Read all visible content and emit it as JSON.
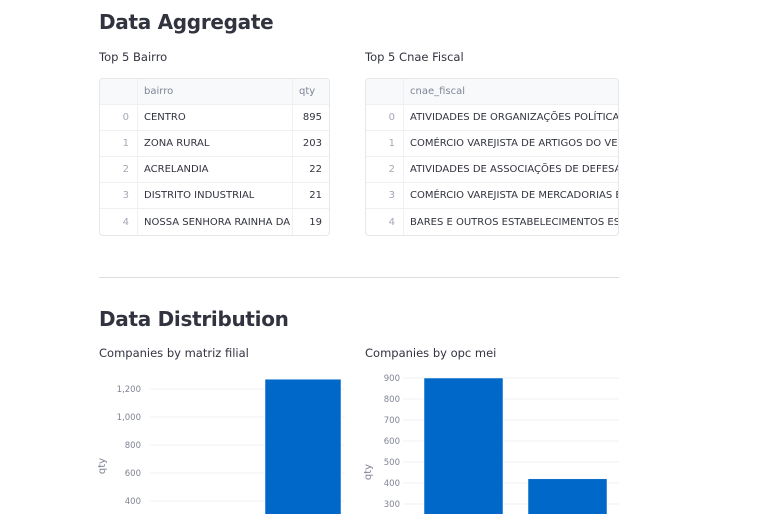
{
  "aggregate": {
    "title": "Data Aggregate",
    "bairro_table": {
      "title": "Top 5 Bairro",
      "columns": [
        "",
        "bairro",
        "qty"
      ],
      "rows": [
        {
          "index": "0",
          "bairro": "CENTRO",
          "qty": "895"
        },
        {
          "index": "1",
          "bairro": "ZONA RURAL",
          "qty": "203"
        },
        {
          "index": "2",
          "bairro": "ACRELANDIA",
          "qty": "22"
        },
        {
          "index": "3",
          "bairro": "DISTRITO INDUSTRIAL",
          "qty": "21"
        },
        {
          "index": "4",
          "bairro": "NOSSA SENHORA RAINHA DA PAZ",
          "qty": "19"
        }
      ]
    },
    "cnae_table": {
      "title": "Top 5 Cnae Fiscal",
      "columns": [
        "",
        "cnae_fiscal"
      ],
      "rows": [
        {
          "index": "0",
          "cnae_fiscal": "ATIVIDADES DE ORGANIZAÇÕES POLÍTICAS"
        },
        {
          "index": "1",
          "cnae_fiscal": "COMÉRCIO VAREJISTA DE ARTIGOS DO VESTUÁRIO"
        },
        {
          "index": "2",
          "cnae_fiscal": "ATIVIDADES DE ASSOCIAÇÕES DE DEFESA DE DIREITOS"
        },
        {
          "index": "3",
          "cnae_fiscal": "COMÉRCIO VAREJISTA DE MERCADORIAS EM GERAL"
        },
        {
          "index": "4",
          "cnae_fiscal": "BARES E OUTROS ESTABELECIMENTOS ESPECIALIZADOS"
        }
      ]
    }
  },
  "distribution": {
    "title": "Data Distribution"
  },
  "chart_data": [
    {
      "type": "bar",
      "title": "Companies by matriz filial",
      "ylabel": "qty",
      "yticks": [
        "400",
        "600",
        "800",
        "1,000",
        "1,200"
      ],
      "ylim": [
        400,
        1200
      ],
      "grid": true,
      "color": "#0068c9",
      "values": [
        1270
      ]
    },
    {
      "type": "bar",
      "title": "Companies by opc mei",
      "ylabel": "qty",
      "yticks": [
        "300",
        "400",
        "500",
        "600",
        "700",
        "800",
        "900"
      ],
      "ylim": [
        300,
        900
      ],
      "grid": true,
      "color": "#0068c9",
      "values": [
        900,
        420
      ]
    }
  ]
}
